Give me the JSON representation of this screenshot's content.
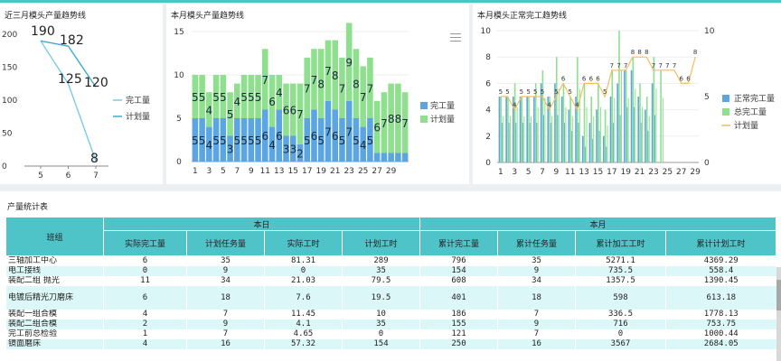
{
  "panels": {
    "p1_title": "近三月模头产量趋势线",
    "p2_title": "本月模头产量趋势线",
    "p3_title": "本月模头正常完工趋势线"
  },
  "colors": {
    "accent": "#4ec3c8",
    "blue": "#5aa5e2",
    "green": "#8ee08e",
    "orange": "#f5bd5e",
    "line_light": "#7bcbe5",
    "line_dark": "#3ea9d6"
  },
  "chart_data": [
    {
      "type": "line",
      "title": "近三月模头产量趋势线",
      "x": [
        "5",
        "6",
        "7"
      ],
      "ylim": [
        0,
        200
      ],
      "yticks": [
        0,
        50,
        100,
        150,
        200
      ],
      "series": [
        {
          "name": "完工量",
          "values": [
            190,
            125,
            8
          ]
        },
        {
          "name": "计划量",
          "values": [
            190,
            182,
            120
          ]
        }
      ],
      "labels": [
        "190",
        "182",
        "125",
        "120",
        "8"
      ],
      "legend": "right"
    },
    {
      "type": "bar",
      "stacked": true,
      "title": "本月模头产量趋势线",
      "categories": [
        "1",
        "2",
        "3",
        "4",
        "5",
        "6",
        "7",
        "8",
        "9",
        "10",
        "11",
        "12",
        "13",
        "14",
        "15",
        "16",
        "17",
        "18",
        "19",
        "20",
        "21",
        "22",
        "23",
        "24",
        "25",
        "26",
        "27",
        "28",
        "29",
        "30",
        "31"
      ],
      "xticks": [
        "1",
        "3",
        "5",
        "7",
        "9",
        "11",
        "13",
        "15",
        "17",
        "19",
        "21",
        "23",
        "25",
        "27",
        "29"
      ],
      "ylim": [
        0,
        15
      ],
      "yticks": [
        0,
        5,
        10,
        15
      ],
      "series": [
        {
          "name": "完工量",
          "values": [
            5,
            5,
            4,
            5,
            5,
            3,
            5,
            5,
            5,
            5,
            6,
            4,
            6,
            3,
            3,
            2,
            5,
            6,
            5,
            7,
            6,
            5,
            7,
            5,
            4,
            5,
            1,
            1,
            1,
            1,
            1
          ]
        },
        {
          "name": "计划量",
          "values": [
            5,
            5,
            4,
            5,
            5,
            5,
            4,
            5,
            5,
            5,
            7,
            6,
            4,
            6,
            6,
            7,
            7,
            7,
            8,
            7,
            8,
            7,
            9,
            8,
            7,
            7,
            6,
            7,
            8,
            8,
            7
          ]
        }
      ],
      "legend": "right"
    },
    {
      "type": "bar",
      "title": "本月模头正常完工趋势线",
      "categories": [
        "1",
        "2",
        "3",
        "4",
        "5",
        "6",
        "7",
        "8",
        "9",
        "10",
        "11",
        "12",
        "13",
        "14",
        "15",
        "16",
        "17",
        "18",
        "19",
        "20",
        "21",
        "22",
        "23",
        "24",
        "25",
        "26",
        "27",
        "28",
        "29"
      ],
      "xticks": [
        "1",
        "3",
        "5",
        "7",
        "9",
        "11",
        "13",
        "15",
        "17",
        "19",
        "21",
        "23",
        "25",
        "27",
        "29"
      ],
      "ylim": [
        0,
        10
      ],
      "yticks_left": [
        0,
        2,
        4,
        6,
        8,
        10
      ],
      "yticks_right": [
        0,
        5,
        10
      ],
      "series": [
        {
          "name": "正常完工量",
          "values": [
            5,
            5,
            5,
            5,
            5,
            5,
            6,
            5,
            6,
            5,
            4,
            5,
            2,
            3,
            4,
            2,
            5,
            6,
            7,
            7,
            5,
            4,
            6,
            0,
            0,
            0,
            0,
            0,
            0
          ]
        },
        {
          "name": "总完工量",
          "values": [
            5,
            5,
            6,
            5,
            5,
            6,
            7,
            5,
            8,
            6,
            5,
            8,
            6,
            5,
            6,
            4,
            7,
            10,
            7,
            8,
            6,
            5,
            8,
            7,
            0,
            0,
            0,
            0,
            0
          ]
        },
        {
          "name": "计划量",
          "values": [
            5,
            5,
            4,
            5,
            5,
            5,
            5,
            4,
            5,
            6,
            5,
            4,
            6,
            6,
            6,
            5,
            7,
            7,
            7,
            8,
            8,
            8,
            7,
            7,
            7,
            7,
            6,
            6,
            8
          ]
        }
      ],
      "legend": "right"
    }
  ],
  "table": {
    "title": "产量统计表",
    "group_header": "班组",
    "day_header": "本日",
    "month_header": "本月",
    "columns": [
      "实际完工量",
      "计划任务量",
      "实际工时",
      "计划工时",
      "累计完工量",
      "累计任务量",
      "累计加工工时",
      "累计计划工时"
    ],
    "rows": [
      [
        "三轴加工中心",
        "6",
        "35",
        "81.31",
        "289",
        "796",
        "35",
        "5271.1",
        "4369.29"
      ],
      [
        "电工接线",
        "0",
        "9",
        "0",
        "35",
        "154",
        "9",
        "735.5",
        "558.4"
      ],
      [
        "装配二组 抛光",
        "11",
        "34",
        "21.03",
        "79.5",
        "608",
        "34",
        "1357.5",
        "1390.45"
      ],
      [
        "电镀后精光刀磨床",
        "6",
        "18",
        "7.6",
        "19.5",
        "401",
        "18",
        "598",
        "613.18"
      ],
      [
        "装配一组合模",
        "4",
        "7",
        "11.45",
        "10",
        "186",
        "7",
        "336.5",
        "1778.13"
      ],
      [
        "装配二组合模",
        "2",
        "9",
        "4.1",
        "35",
        "155",
        "9",
        "716",
        "753.75"
      ],
      [
        "完工前总检验",
        "1",
        "7",
        "4.65",
        "0",
        "121",
        "7",
        "0",
        "1000.44"
      ],
      [
        "镜面磨床",
        "4",
        "16",
        "57.32",
        "154",
        "250",
        "16",
        "3567",
        "2684.05"
      ]
    ]
  }
}
